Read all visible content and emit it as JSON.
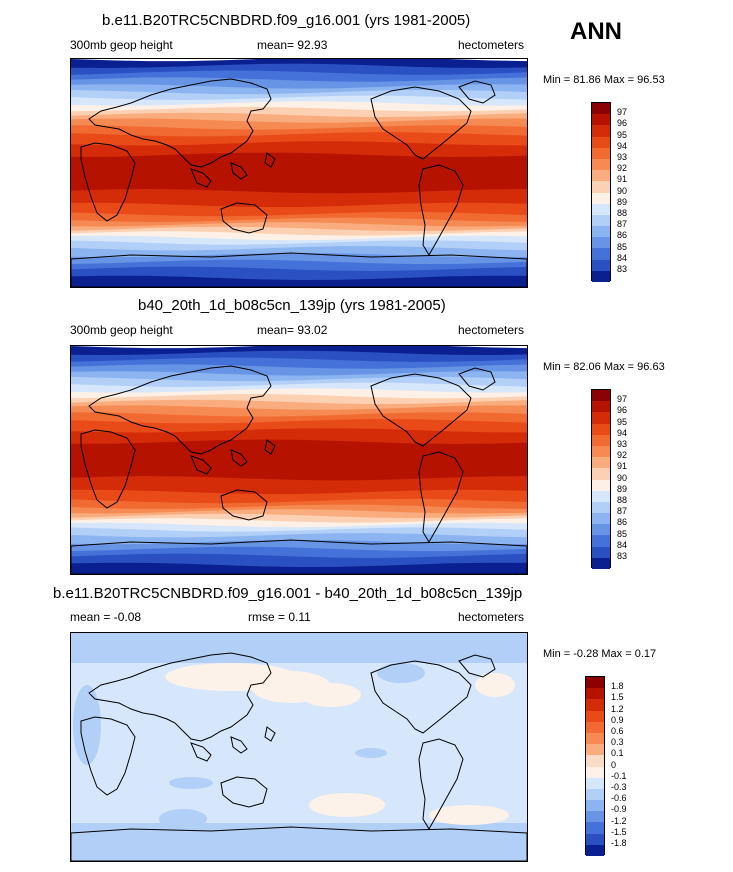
{
  "season": "ANN",
  "land_color": "#000000",
  "panels": [
    {
      "title": "b.e11.B20TRC5CNBDRD.f09_g16.001 (yrs 1981-2005)",
      "left_label": "300mb geop height",
      "center_label": "mean=  92.93",
      "right_label": "hectometers",
      "minmax": "Min =  81.86 Max =  96.53",
      "kind": "abs",
      "colorbar": {
        "labels": [
          "97",
          "96",
          "95",
          "94",
          "93",
          "92",
          "91",
          "90",
          "89",
          "88",
          "87",
          "86",
          "85",
          "84",
          "83"
        ],
        "colors": [
          "#8b0000",
          "#b51200",
          "#d42c08",
          "#e84a18",
          "#f06a32",
          "#f58a52",
          "#f9ac7e",
          "#fcd0b2",
          "#fdf0e6",
          "#d6e6fb",
          "#b2cff7",
          "#8cb4f0",
          "#6894e6",
          "#4572d8",
          "#2a50c2",
          "#0a2090"
        ]
      }
    },
    {
      "title": "b40_20th_1d_b08c5cn_139jp (yrs 1981-2005)",
      "left_label": "300mb geop height",
      "center_label": "mean=  93.02",
      "right_label": "hectometers",
      "minmax": "Min =  82.06 Max =  96.63",
      "kind": "abs",
      "colorbar": {
        "labels": [
          "97",
          "96",
          "95",
          "94",
          "93",
          "92",
          "91",
          "90",
          "89",
          "88",
          "87",
          "86",
          "85",
          "84",
          "83"
        ],
        "colors": [
          "#8b0000",
          "#b51200",
          "#d42c08",
          "#e84a18",
          "#f06a32",
          "#f58a52",
          "#f9ac7e",
          "#fcd0b2",
          "#fdf0e6",
          "#d6e6fb",
          "#b2cff7",
          "#8cb4f0",
          "#6894e6",
          "#4572d8",
          "#2a50c2",
          "#0a2090"
        ]
      }
    },
    {
      "title": "b.e11.B20TRC5CNBDRD.f09_g16.001 - b40_20th_1d_b08c5cn_139jp",
      "left_label": "mean =  -0.08",
      "center_label": "rmse =   0.11",
      "right_label": "hectometers",
      "minmax": "Min =  -0.28 Max =   0.17",
      "kind": "diff",
      "colorbar": {
        "labels": [
          "1.8",
          "1.5",
          "1.2",
          "0.9",
          "0.6",
          "0.3",
          "0.1",
          "0",
          "-0.1",
          "-0.3",
          "-0.6",
          "-0.9",
          "-1.2",
          "-1.5",
          "-1.8"
        ],
        "colors": [
          "#8b0000",
          "#b51200",
          "#d42c08",
          "#e84a18",
          "#f06a32",
          "#f58a52",
          "#f9ac7e",
          "#fbdcc6",
          "#fdf2ea",
          "#d6e6fb",
          "#b2cff7",
          "#8cb4f0",
          "#6894e6",
          "#4572d8",
          "#2a50c2",
          "#0a2090"
        ]
      }
    }
  ]
}
